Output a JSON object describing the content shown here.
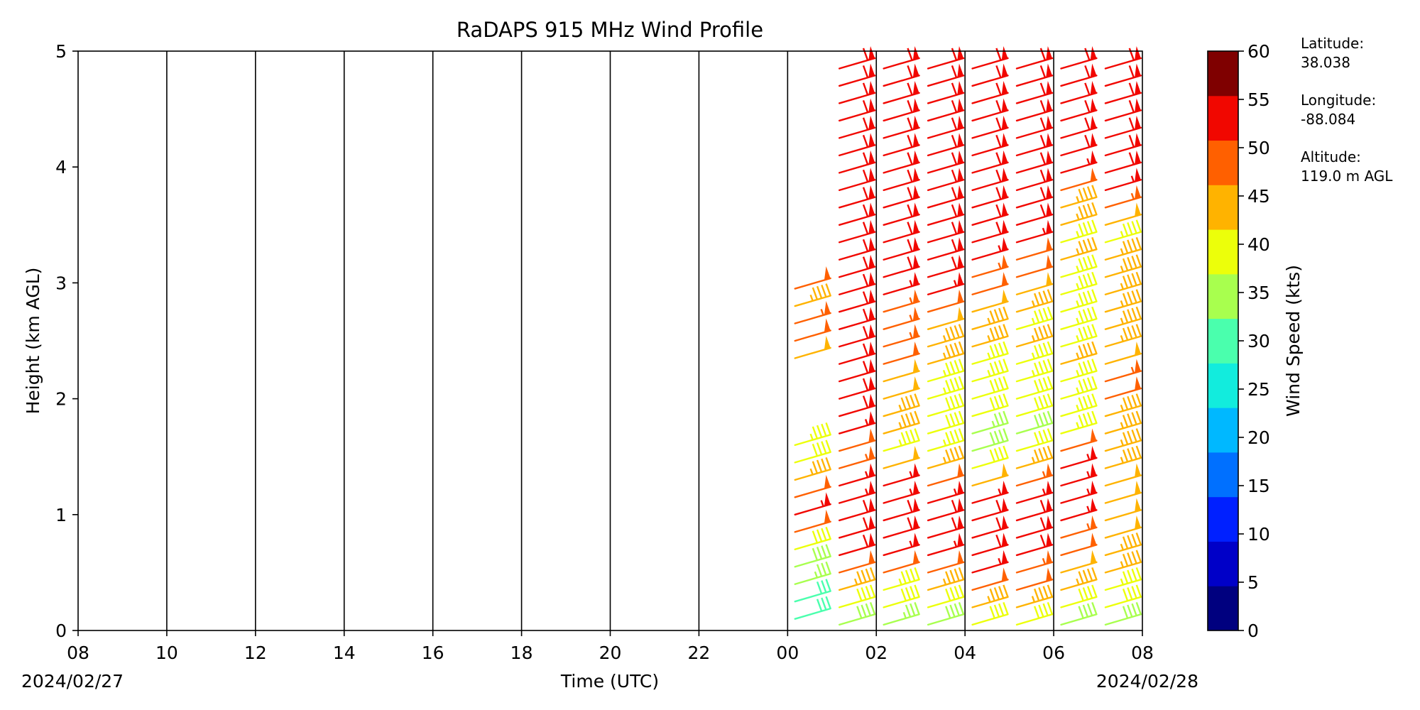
{
  "chart_data": {
    "type": "wind_barbs",
    "title": "RaDAPS 915 MHz Wind Profile",
    "xlabel": "Time (UTC)",
    "ylabel": "Height (km AGL)",
    "x_ticks": [
      "08",
      "10",
      "12",
      "14",
      "16",
      "18",
      "20",
      "22",
      "00",
      "02",
      "04",
      "06",
      "08"
    ],
    "y_ticks": [
      "0",
      "1",
      "2",
      "3",
      "4",
      "5"
    ],
    "ylim": [
      0,
      5
    ],
    "xlim_hours": [
      0,
      24
    ],
    "start_date": "2024/02/27",
    "end_date": "2024/02/28",
    "grid": "vertical lines at each x tick",
    "colorbar": {
      "label": "Wind Speed (kts)",
      "ticks": [
        "0",
        "5",
        "10",
        "15",
        "20",
        "25",
        "30",
        "35",
        "40",
        "45",
        "50",
        "55",
        "60"
      ],
      "colors": [
        "#00007f",
        "#0000c8",
        "#0020ff",
        "#0070ff",
        "#00b8ff",
        "#12ecdd",
        "#4affad",
        "#a8ff4e",
        "#ecff0a",
        "#ffb300",
        "#ff6000",
        "#f10700",
        "#7f0000"
      ]
    },
    "profiles": [
      {
        "time": "00:10",
        "levels": [
          {
            "h": 0.1,
            "spd": 30
          },
          {
            "h": 0.25,
            "spd": 32
          },
          {
            "h": 0.4,
            "spd": 35
          },
          {
            "h": 0.55,
            "spd": 38
          },
          {
            "h": 0.7,
            "spd": 42
          },
          {
            "h": 0.85,
            "spd": 52
          },
          {
            "h": 1.0,
            "spd": 56
          },
          {
            "h": 1.15,
            "spd": 50
          },
          {
            "h": 1.3,
            "spd": 45
          },
          {
            "h": 1.45,
            "spd": 40
          },
          {
            "h": 1.6,
            "spd": 43
          },
          {
            "h": 2.35,
            "spd": 48
          },
          {
            "h": 2.5,
            "spd": 52
          },
          {
            "h": 2.65,
            "spd": 53
          },
          {
            "h": 2.8,
            "spd": 45
          },
          {
            "h": 2.95,
            "spd": 52
          }
        ]
      },
      {
        "time": "01:10",
        "levels": [
          {
            "h": 0.05,
            "spd": 38
          },
          {
            "h": 0.2,
            "spd": 42
          },
          {
            "h": 0.35,
            "spd": 45
          },
          {
            "h": 0.5,
            "spd": 52
          },
          {
            "h": 0.65,
            "spd": 58
          },
          {
            "h": 0.8,
            "spd": 58
          },
          {
            "h": 0.95,
            "spd": 58
          },
          {
            "h": 1.1,
            "spd": 57
          },
          {
            "h": 1.25,
            "spd": 55
          },
          {
            "h": 1.4,
            "spd": 53
          },
          {
            "h": 1.55,
            "spd": 52
          },
          {
            "h": 1.7,
            "spd": 56
          },
          {
            "h": 1.85,
            "spd": 58
          },
          {
            "h": 2.0,
            "spd": 58
          },
          {
            "h": 2.15,
            "spd": 58
          },
          {
            "h": 2.3,
            "spd": 58
          },
          {
            "h": 2.45,
            "spd": 58
          },
          {
            "h": 2.6,
            "spd": 58
          },
          {
            "h": 2.75,
            "spd": 58
          },
          {
            "h": 2.9,
            "spd": 58
          },
          {
            "h": 3.05,
            "spd": 58
          },
          {
            "h": 3.2,
            "spd": 58
          },
          {
            "h": 3.35,
            "spd": 58
          },
          {
            "h": 3.5,
            "spd": 58
          },
          {
            "h": 3.65,
            "spd": 58
          },
          {
            "h": 3.8,
            "spd": 58
          },
          {
            "h": 3.95,
            "spd": 58
          },
          {
            "h": 4.1,
            "spd": 58
          },
          {
            "h": 4.25,
            "spd": 58
          },
          {
            "h": 4.4,
            "spd": 58
          },
          {
            "h": 4.55,
            "spd": 58
          },
          {
            "h": 4.7,
            "spd": 58
          },
          {
            "h": 4.85,
            "spd": 58
          }
        ]
      },
      {
        "time": "02:10",
        "levels": [
          {
            "h": 0.05,
            "spd": 35
          },
          {
            "h": 0.2,
            "spd": 40
          },
          {
            "h": 0.35,
            "spd": 44
          },
          {
            "h": 0.5,
            "spd": 50
          },
          {
            "h": 0.65,
            "spd": 56
          },
          {
            "h": 0.8,
            "spd": 58
          },
          {
            "h": 0.95,
            "spd": 58
          },
          {
            "h": 1.1,
            "spd": 57
          },
          {
            "h": 1.25,
            "spd": 55
          },
          {
            "h": 1.4,
            "spd": 48
          },
          {
            "h": 1.55,
            "spd": 44
          },
          {
            "h": 1.7,
            "spd": 45
          },
          {
            "h": 1.85,
            "spd": 47
          },
          {
            "h": 2.0,
            "spd": 48
          },
          {
            "h": 2.15,
            "spd": 49
          },
          {
            "h": 2.3,
            "spd": 52
          },
          {
            "h": 2.45,
            "spd": 53
          },
          {
            "h": 2.6,
            "spd": 53
          },
          {
            "h": 2.75,
            "spd": 54
          },
          {
            "h": 2.9,
            "spd": 56
          },
          {
            "h": 3.05,
            "spd": 58
          },
          {
            "h": 3.2,
            "spd": 58
          },
          {
            "h": 3.35,
            "spd": 58
          },
          {
            "h": 3.5,
            "spd": 58
          },
          {
            "h": 3.65,
            "spd": 58
          },
          {
            "h": 3.8,
            "spd": 58
          },
          {
            "h": 3.95,
            "spd": 58
          },
          {
            "h": 4.1,
            "spd": 58
          },
          {
            "h": 4.25,
            "spd": 58
          },
          {
            "h": 4.4,
            "spd": 58
          },
          {
            "h": 4.55,
            "spd": 58
          },
          {
            "h": 4.7,
            "spd": 58
          },
          {
            "h": 4.85,
            "spd": 58
          }
        ]
      },
      {
        "time": "03:10",
        "levels": [
          {
            "h": 0.05,
            "spd": 38
          },
          {
            "h": 0.2,
            "spd": 42
          },
          {
            "h": 0.35,
            "spd": 46
          },
          {
            "h": 0.5,
            "spd": 50
          },
          {
            "h": 0.65,
            "spd": 56
          },
          {
            "h": 0.8,
            "spd": 58
          },
          {
            "h": 0.95,
            "spd": 58
          },
          {
            "h": 1.1,
            "spd": 57
          },
          {
            "h": 1.25,
            "spd": 52
          },
          {
            "h": 1.4,
            "spd": 46
          },
          {
            "h": 1.55,
            "spd": 43
          },
          {
            "h": 1.7,
            "spd": 42
          },
          {
            "h": 1.85,
            "spd": 41
          },
          {
            "h": 2.0,
            "spd": 43
          },
          {
            "h": 2.15,
            "spd": 44
          },
          {
            "h": 2.3,
            "spd": 46
          },
          {
            "h": 2.45,
            "spd": 47
          },
          {
            "h": 2.6,
            "spd": 48
          },
          {
            "h": 2.75,
            "spd": 52
          },
          {
            "h": 2.9,
            "spd": 56
          },
          {
            "h": 3.05,
            "spd": 58
          },
          {
            "h": 3.2,
            "spd": 58
          },
          {
            "h": 3.35,
            "spd": 58
          },
          {
            "h": 3.5,
            "spd": 58
          },
          {
            "h": 3.65,
            "spd": 58
          },
          {
            "h": 3.8,
            "spd": 58
          },
          {
            "h": 3.95,
            "spd": 58
          },
          {
            "h": 4.1,
            "spd": 58
          },
          {
            "h": 4.25,
            "spd": 58
          },
          {
            "h": 4.4,
            "spd": 58
          },
          {
            "h": 4.55,
            "spd": 58
          },
          {
            "h": 4.7,
            "spd": 58
          },
          {
            "h": 4.85,
            "spd": 58
          }
        ]
      },
      {
        "time": "04:10",
        "levels": [
          {
            "h": 0.05,
            "spd": 40
          },
          {
            "h": 0.2,
            "spd": 46
          },
          {
            "h": 0.35,
            "spd": 52
          },
          {
            "h": 0.5,
            "spd": 56
          },
          {
            "h": 0.65,
            "spd": 58
          },
          {
            "h": 0.8,
            "spd": 58
          },
          {
            "h": 0.95,
            "spd": 58
          },
          {
            "h": 1.1,
            "spd": 57
          },
          {
            "h": 1.25,
            "spd": 48
          },
          {
            "h": 1.4,
            "spd": 42
          },
          {
            "h": 1.55,
            "spd": 38
          },
          {
            "h": 1.7,
            "spd": 36
          },
          {
            "h": 1.85,
            "spd": 40
          },
          {
            "h": 2.0,
            "spd": 42
          },
          {
            "h": 2.15,
            "spd": 43
          },
          {
            "h": 2.3,
            "spd": 44
          },
          {
            "h": 2.45,
            "spd": 45
          },
          {
            "h": 2.6,
            "spd": 46
          },
          {
            "h": 2.75,
            "spd": 48
          },
          {
            "h": 2.9,
            "spd": 52
          },
          {
            "h": 3.05,
            "spd": 54
          },
          {
            "h": 3.2,
            "spd": 56
          },
          {
            "h": 3.35,
            "spd": 58
          },
          {
            "h": 3.5,
            "spd": 58
          },
          {
            "h": 3.65,
            "spd": 58
          },
          {
            "h": 3.8,
            "spd": 58
          },
          {
            "h": 3.95,
            "spd": 58
          },
          {
            "h": 4.1,
            "spd": 58
          },
          {
            "h": 4.25,
            "spd": 58
          },
          {
            "h": 4.4,
            "spd": 58
          },
          {
            "h": 4.55,
            "spd": 58
          },
          {
            "h": 4.7,
            "spd": 58
          },
          {
            "h": 4.85,
            "spd": 58
          }
        ]
      },
      {
        "time": "05:10",
        "levels": [
          {
            "h": 0.05,
            "spd": 40
          },
          {
            "h": 0.2,
            "spd": 45
          },
          {
            "h": 0.35,
            "spd": 50
          },
          {
            "h": 0.5,
            "spd": 54
          },
          {
            "h": 0.65,
            "spd": 58
          },
          {
            "h": 0.8,
            "spd": 58
          },
          {
            "h": 0.95,
            "spd": 58
          },
          {
            "h": 1.1,
            "spd": 57
          },
          {
            "h": 1.25,
            "spd": 53
          },
          {
            "h": 1.4,
            "spd": 46
          },
          {
            "h": 1.55,
            "spd": 40
          },
          {
            "h": 1.7,
            "spd": 38
          },
          {
            "h": 1.85,
            "spd": 40
          },
          {
            "h": 2.0,
            "spd": 42
          },
          {
            "h": 2.15,
            "spd": 43
          },
          {
            "h": 2.3,
            "spd": 44
          },
          {
            "h": 2.45,
            "spd": 45
          },
          {
            "h": 2.6,
            "spd": 43
          },
          {
            "h": 2.75,
            "spd": 47
          },
          {
            "h": 2.9,
            "spd": 48
          },
          {
            "h": 3.05,
            "spd": 50
          },
          {
            "h": 3.2,
            "spd": 52
          },
          {
            "h": 3.35,
            "spd": 56
          },
          {
            "h": 3.5,
            "spd": 58
          },
          {
            "h": 3.65,
            "spd": 58
          },
          {
            "h": 3.8,
            "spd": 58
          },
          {
            "h": 3.95,
            "spd": 58
          },
          {
            "h": 4.1,
            "spd": 58
          },
          {
            "h": 4.25,
            "spd": 58
          },
          {
            "h": 4.4,
            "spd": 58
          },
          {
            "h": 4.55,
            "spd": 58
          },
          {
            "h": 4.7,
            "spd": 58
          },
          {
            "h": 4.85,
            "spd": 58
          }
        ]
      },
      {
        "time": "06:10",
        "levels": [
          {
            "h": 0.05,
            "spd": 38
          },
          {
            "h": 0.2,
            "spd": 40
          },
          {
            "h": 0.35,
            "spd": 45
          },
          {
            "h": 0.5,
            "spd": 48
          },
          {
            "h": 0.65,
            "spd": 52
          },
          {
            "h": 0.8,
            "spd": 54
          },
          {
            "h": 0.95,
            "spd": 56
          },
          {
            "h": 1.1,
            "spd": 57
          },
          {
            "h": 1.25,
            "spd": 56
          },
          {
            "h": 1.4,
            "spd": 55
          },
          {
            "h": 1.55,
            "spd": 50
          },
          {
            "h": 1.7,
            "spd": 44
          },
          {
            "h": 1.85,
            "spd": 43
          },
          {
            "h": 2.0,
            "spd": 44
          },
          {
            "h": 2.15,
            "spd": 44
          },
          {
            "h": 2.3,
            "spd": 45
          },
          {
            "h": 2.45,
            "spd": 44
          },
          {
            "h": 2.6,
            "spd": 43
          },
          {
            "h": 2.75,
            "spd": 44
          },
          {
            "h": 2.9,
            "spd": 44
          },
          {
            "h": 3.05,
            "spd": 44
          },
          {
            "h": 3.2,
            "spd": 45
          },
          {
            "h": 3.35,
            "spd": 44
          },
          {
            "h": 3.5,
            "spd": 45
          },
          {
            "h": 3.65,
            "spd": 46
          },
          {
            "h": 3.8,
            "spd": 52
          },
          {
            "h": 3.95,
            "spd": 56
          },
          {
            "h": 4.1,
            "spd": 58
          },
          {
            "h": 4.25,
            "spd": 58
          },
          {
            "h": 4.4,
            "spd": 58
          },
          {
            "h": 4.55,
            "spd": 58
          },
          {
            "h": 4.7,
            "spd": 58
          },
          {
            "h": 4.85,
            "spd": 58
          }
        ]
      },
      {
        "time": "07:10",
        "levels": [
          {
            "h": 0.05,
            "spd": 38
          },
          {
            "h": 0.2,
            "spd": 40
          },
          {
            "h": 0.35,
            "spd": 43
          },
          {
            "h": 0.5,
            "spd": 46
          },
          {
            "h": 0.65,
            "spd": 47
          },
          {
            "h": 0.8,
            "spd": 48
          },
          {
            "h": 0.95,
            "spd": 48
          },
          {
            "h": 1.1,
            "spd": 49
          },
          {
            "h": 1.25,
            "spd": 48
          },
          {
            "h": 1.4,
            "spd": 46
          },
          {
            "h": 1.55,
            "spd": 45
          },
          {
            "h": 1.7,
            "spd": 46
          },
          {
            "h": 1.85,
            "spd": 47
          },
          {
            "h": 2.0,
            "spd": 52
          },
          {
            "h": 2.15,
            "spd": 53
          },
          {
            "h": 2.3,
            "spd": 48
          },
          {
            "h": 2.45,
            "spd": 47
          },
          {
            "h": 2.6,
            "spd": 46
          },
          {
            "h": 2.75,
            "spd": 45
          },
          {
            "h": 2.9,
            "spd": 46
          },
          {
            "h": 3.05,
            "spd": 46
          },
          {
            "h": 3.2,
            "spd": 47
          },
          {
            "h": 3.35,
            "spd": 44
          },
          {
            "h": 3.5,
            "spd": 48
          },
          {
            "h": 3.65,
            "spd": 53
          },
          {
            "h": 3.8,
            "spd": 56
          },
          {
            "h": 3.95,
            "spd": 58
          },
          {
            "h": 4.1,
            "spd": 58
          },
          {
            "h": 4.25,
            "spd": 58
          },
          {
            "h": 4.4,
            "spd": 58
          },
          {
            "h": 4.55,
            "spd": 58
          },
          {
            "h": 4.7,
            "spd": 58
          },
          {
            "h": 4.85,
            "spd": 58
          }
        ]
      }
    ]
  },
  "info": {
    "lat_label": "Latitude:",
    "lat_value": "38.038",
    "lon_label": "Longitude:",
    "lon_value": "-88.084",
    "alt_label": "Altitude:",
    "alt_value": "119.0 m AGL"
  }
}
